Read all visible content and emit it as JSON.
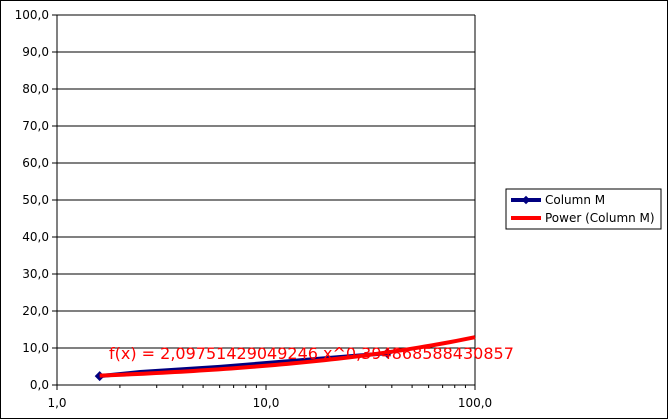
{
  "chart_data": {
    "type": "scatter",
    "title": "",
    "xlabel": "",
    "ylabel": "",
    "x_scale": "log",
    "xlim": [
      1,
      100
    ],
    "ylim": [
      0,
      100
    ],
    "x_ticks": [
      "1,0",
      "10,0",
      "100,0"
    ],
    "y_ticks": [
      "0,0",
      "10,0",
      "20,0",
      "30,0",
      "40,0",
      "50,0",
      "60,0",
      "70,0",
      "80,0",
      "90,0",
      "100,0"
    ],
    "grid": "horizontal major",
    "legend_position": "right",
    "series": [
      {
        "name": "Column M",
        "color": "#000080",
        "marker": "diamond",
        "x": [
          1.6,
          2.5,
          6,
          38
        ],
        "y": [
          2.4,
          3.5,
          4.9,
          8.6
        ]
      },
      {
        "name": "Power (Column M)",
        "color": "#ff0000",
        "trendline": "power",
        "coef": 2.09751429049246,
        "exponent": 0.394868588430857,
        "x_range": [
          1.6,
          100
        ]
      }
    ],
    "equation_label": "f(x) = 2,09751429049246 x^0,394868588430857"
  }
}
